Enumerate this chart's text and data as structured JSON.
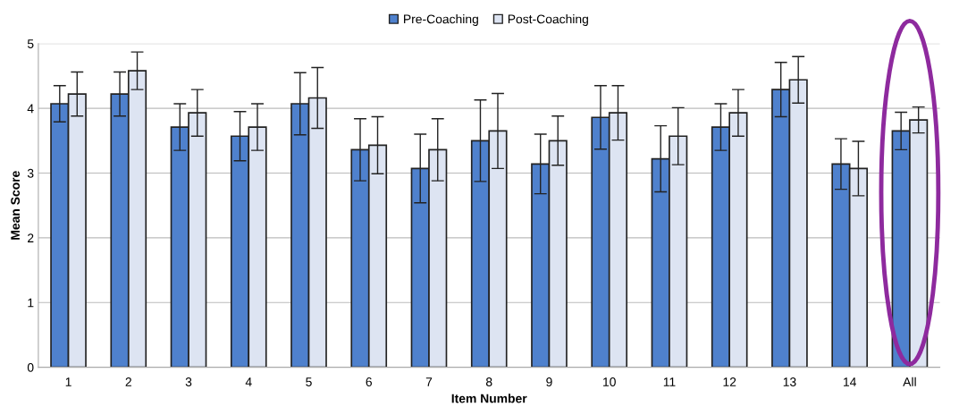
{
  "chart_data": {
    "type": "bar",
    "xlabel": "Item Number",
    "ylabel": "Mean Score",
    "categories": [
      "1",
      "2",
      "3",
      "4",
      "5",
      "6",
      "7",
      "8",
      "9",
      "10",
      "11",
      "12",
      "13",
      "14",
      "All"
    ],
    "series": [
      {
        "name": "Pre-Coaching",
        "color": "#4f81cd",
        "values": [
          4.07,
          4.22,
          3.71,
          3.57,
          4.07,
          3.36,
          3.07,
          3.5,
          3.14,
          3.86,
          3.22,
          3.71,
          4.29,
          3.14,
          3.65
        ],
        "errors": [
          0.28,
          0.34,
          0.36,
          0.38,
          0.48,
          0.48,
          0.53,
          0.63,
          0.46,
          0.49,
          0.51,
          0.36,
          0.42,
          0.39,
          0.29
        ]
      },
      {
        "name": "Post-Coaching",
        "color": "#dde4f2",
        "values": [
          4.22,
          4.58,
          3.93,
          3.71,
          4.16,
          3.43,
          3.36,
          3.65,
          3.5,
          3.93,
          3.57,
          3.93,
          4.44,
          3.07,
          3.82
        ],
        "errors": [
          0.34,
          0.29,
          0.36,
          0.36,
          0.47,
          0.44,
          0.48,
          0.58,
          0.38,
          0.42,
          0.44,
          0.36,
          0.36,
          0.42,
          0.2
        ]
      }
    ],
    "ylim": [
      0,
      5
    ],
    "yticks": [
      0,
      1,
      2,
      3,
      4,
      5
    ],
    "grid": "y",
    "legend": "top"
  }
}
